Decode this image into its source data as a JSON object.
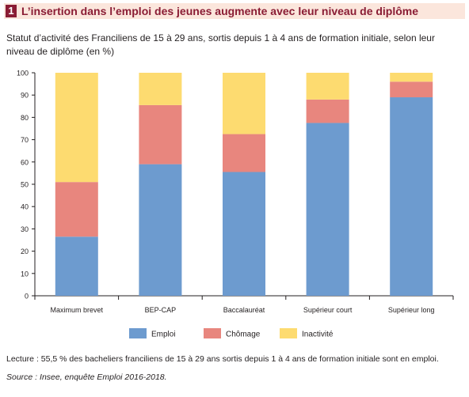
{
  "header": {
    "number": "1",
    "title": "L’insertion dans l’emploi des jeunes augmente avec leur niveau de diplôme",
    "subtitle": "Statut d’activité des Franciliens de 15 à 29 ans, sortis depuis 1 à 4 ans de formation initiale, selon leur niveau de diplôme (en %)"
  },
  "chart_data": {
    "type": "bar",
    "stacked": true,
    "categories": [
      "Maximum brevet",
      "BEP-CAP",
      "Baccalauréat",
      "Supérieur court",
      "Supérieur long"
    ],
    "series": [
      {
        "name": "Emploi",
        "color": "#6d9bcf",
        "values": [
          26.5,
          59,
          55.5,
          77.5,
          89
        ]
      },
      {
        "name": "Chômage",
        "color": "#e8867e",
        "values": [
          24.5,
          26.5,
          17,
          10.5,
          7
        ]
      },
      {
        "name": "Inactivité",
        "color": "#fddb70",
        "values": [
          49,
          14.5,
          27.5,
          12,
          4
        ]
      }
    ],
    "ylim": [
      0,
      100
    ],
    "yticks": [
      0,
      10,
      20,
      30,
      40,
      50,
      60,
      70,
      80,
      90,
      100
    ],
    "grid": false,
    "legend_position": "bottom"
  },
  "footer": {
    "lecture": "Lecture : 55,5 % des bacheliers franciliens de 15 à 29 ans sortis depuis 1 à 4 ans de formation initiale sont en emploi.",
    "source": "Source : Insee, enquête Emploi 2016-2018."
  }
}
